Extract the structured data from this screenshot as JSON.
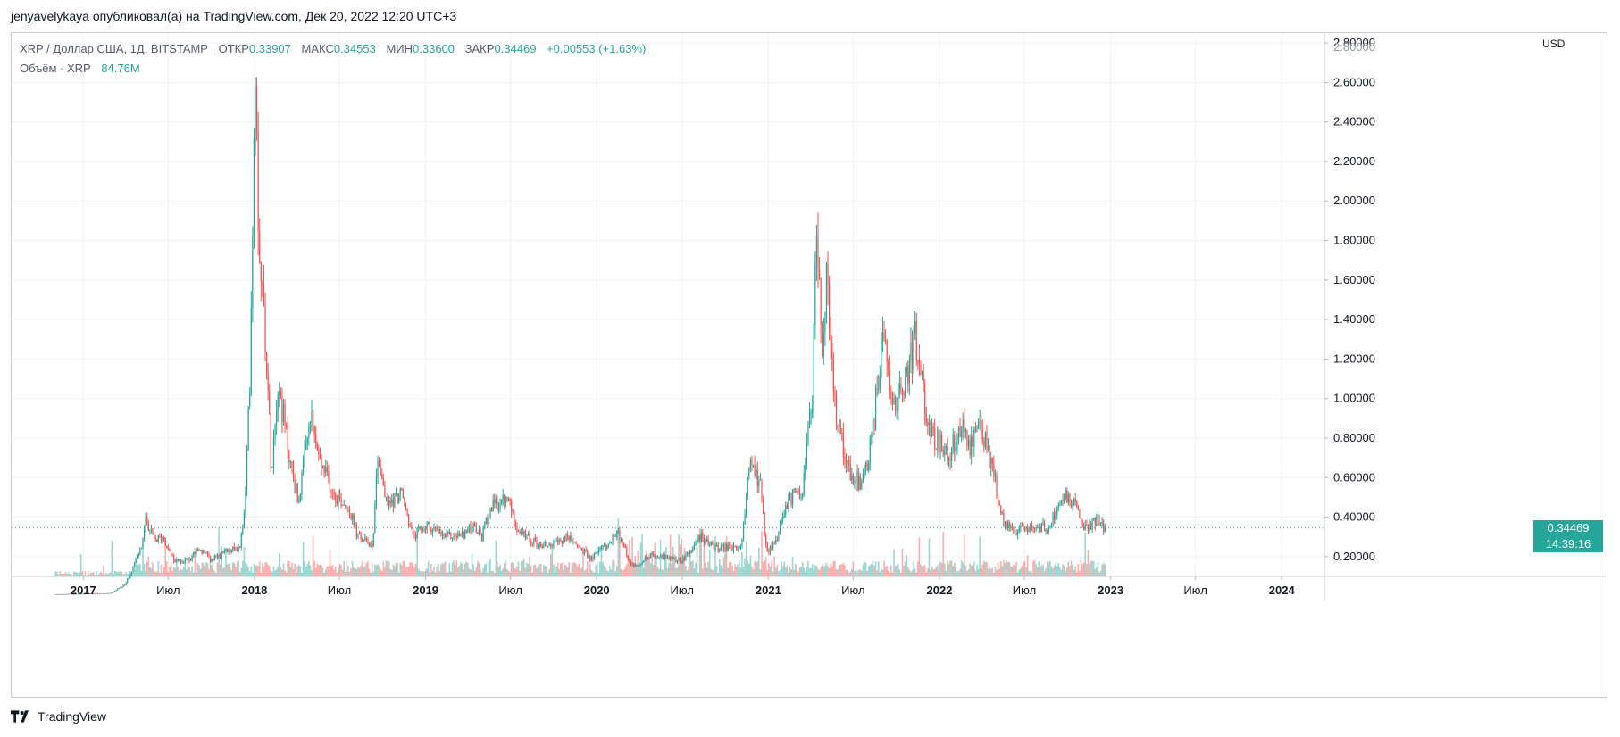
{
  "header": {
    "text": "jenyavelykaya опубликовал(а) на TradingView.com, Дек 20, 2022 12:20 UTC+3"
  },
  "legend": {
    "symbol": "XRP / Доллар США, 1Д, BITSTAMP",
    "open_label": "ОТКР",
    "open": "0.33907",
    "high_label": "МАКС",
    "high": "0.34553",
    "low_label": "МИН",
    "low": "0.33600",
    "close_label": "ЗАКР",
    "close": "0.34469",
    "change": "+0.00553 (+1.63%)",
    "volume_label": "Объём · XRP",
    "volume": "84.76M"
  },
  "axis": {
    "currency": "USD"
  },
  "last_price": {
    "price": "0.34469",
    "countdown": "14:39:16"
  },
  "footer": {
    "brand": "TradingView"
  },
  "colors": {
    "up": "#26a69a",
    "down": "#ef5350",
    "grid": "#f0f3fa",
    "axis": "#131722"
  },
  "chart_data": {
    "type": "candlestick",
    "y_ticks": [
      "0.20000",
      "0.40000",
      "0.60000",
      "0.80000",
      "1.00000",
      "1.20000",
      "1.40000",
      "1.60000",
      "1.80000",
      "2.00000",
      "2.20000",
      "2.40000",
      "2.60000",
      "2.80000"
    ],
    "y_tick_values": [
      0.2,
      0.4,
      0.6,
      0.8,
      1.0,
      1.2,
      1.4,
      1.6,
      1.8,
      2.0,
      2.2,
      2.4,
      2.6,
      2.8
    ],
    "ylim": [
      0.1,
      2.85
    ],
    "x_ticks": [
      {
        "label": "2017",
        "date": "2017-01-01"
      },
      {
        "label": "Июл",
        "date": "2017-07-01"
      },
      {
        "label": "2018",
        "date": "2018-01-01"
      },
      {
        "label": "Июл",
        "date": "2018-07-01"
      },
      {
        "label": "2019",
        "date": "2019-01-01"
      },
      {
        "label": "Июл",
        "date": "2019-07-01"
      },
      {
        "label": "2020",
        "date": "2020-01-01"
      },
      {
        "label": "Июл",
        "date": "2020-07-01"
      },
      {
        "label": "2021",
        "date": "2021-01-01"
      },
      {
        "label": "Июл",
        "date": "2021-07-01"
      },
      {
        "label": "2022",
        "date": "2022-01-01"
      },
      {
        "label": "Июл",
        "date": "2022-07-01"
      },
      {
        "label": "2023",
        "date": "2023-01-01"
      },
      {
        "label": "Июл",
        "date": "2023-07-01"
      },
      {
        "label": "2024",
        "date": "2024-01-01"
      }
    ],
    "xlim": [
      "2016-08-01",
      "2024-04-01"
    ],
    "last_price": 0.34469,
    "series": [
      {
        "date": "2016-11-01",
        "price": 0.009
      },
      {
        "date": "2017-03-01",
        "price": 0.015
      },
      {
        "date": "2017-04-01",
        "price": 0.06
      },
      {
        "date": "2017-05-05",
        "price": 0.25
      },
      {
        "date": "2017-05-15",
        "price": 0.39
      },
      {
        "date": "2017-06-01",
        "price": 0.28
      },
      {
        "date": "2017-06-20",
        "price": 0.3
      },
      {
        "date": "2017-07-15",
        "price": 0.17
      },
      {
        "date": "2017-08-15",
        "price": 0.19
      },
      {
        "date": "2017-09-05",
        "price": 0.24
      },
      {
        "date": "2017-10-01",
        "price": 0.18
      },
      {
        "date": "2017-11-01",
        "price": 0.22
      },
      {
        "date": "2017-12-01",
        "price": 0.25
      },
      {
        "date": "2017-12-12",
        "price": 0.45
      },
      {
        "date": "2017-12-22",
        "price": 1.1
      },
      {
        "date": "2017-12-30",
        "price": 2.2
      },
      {
        "date": "2018-01-04",
        "price": 2.85
      },
      {
        "date": "2018-01-08",
        "price": 2.0
      },
      {
        "date": "2018-01-16",
        "price": 1.6
      },
      {
        "date": "2018-01-25",
        "price": 1.3
      },
      {
        "date": "2018-02-06",
        "price": 0.65
      },
      {
        "date": "2018-02-20",
        "price": 1.1
      },
      {
        "date": "2018-03-01",
        "price": 0.95
      },
      {
        "date": "2018-03-20",
        "price": 0.65
      },
      {
        "date": "2018-04-05",
        "price": 0.48
      },
      {
        "date": "2018-05-01",
        "price": 0.9
      },
      {
        "date": "2018-05-20",
        "price": 0.68
      },
      {
        "date": "2018-06-20",
        "price": 0.52
      },
      {
        "date": "2018-07-20",
        "price": 0.45
      },
      {
        "date": "2018-08-10",
        "price": 0.3
      },
      {
        "date": "2018-09-10",
        "price": 0.26
      },
      {
        "date": "2018-09-21",
        "price": 0.72
      },
      {
        "date": "2018-10-10",
        "price": 0.46
      },
      {
        "date": "2018-11-10",
        "price": 0.52
      },
      {
        "date": "2018-12-05",
        "price": 0.3
      },
      {
        "date": "2019-01-05",
        "price": 0.36
      },
      {
        "date": "2019-02-10",
        "price": 0.3
      },
      {
        "date": "2019-03-20",
        "price": 0.31
      },
      {
        "date": "2019-04-10",
        "price": 0.35
      },
      {
        "date": "2019-05-01",
        "price": 0.3
      },
      {
        "date": "2019-05-20",
        "price": 0.45
      },
      {
        "date": "2019-06-25",
        "price": 0.49
      },
      {
        "date": "2019-07-20",
        "price": 0.32
      },
      {
        "date": "2019-09-01",
        "price": 0.26
      },
      {
        "date": "2019-10-01",
        "price": 0.26
      },
      {
        "date": "2019-11-01",
        "price": 0.3
      },
      {
        "date": "2019-12-20",
        "price": 0.19
      },
      {
        "date": "2020-02-15",
        "price": 0.32
      },
      {
        "date": "2020-03-15",
        "price": 0.15
      },
      {
        "date": "2020-05-01",
        "price": 0.21
      },
      {
        "date": "2020-07-01",
        "price": 0.18
      },
      {
        "date": "2020-08-10",
        "price": 0.3
      },
      {
        "date": "2020-09-15",
        "price": 0.24
      },
      {
        "date": "2020-11-05",
        "price": 0.25
      },
      {
        "date": "2020-11-24",
        "price": 0.7
      },
      {
        "date": "2020-12-15",
        "price": 0.55
      },
      {
        "date": "2020-12-28",
        "price": 0.22
      },
      {
        "date": "2021-01-20",
        "price": 0.28
      },
      {
        "date": "2021-02-05",
        "price": 0.45
      },
      {
        "date": "2021-02-20",
        "price": 0.5
      },
      {
        "date": "2021-03-15",
        "price": 0.55
      },
      {
        "date": "2021-04-05",
        "price": 1.0
      },
      {
        "date": "2021-04-14",
        "price": 1.96
      },
      {
        "date": "2021-04-25",
        "price": 1.2
      },
      {
        "date": "2021-05-05",
        "price": 1.6
      },
      {
        "date": "2021-05-20",
        "price": 1.0
      },
      {
        "date": "2021-06-20",
        "price": 0.65
      },
      {
        "date": "2021-07-20",
        "price": 0.55
      },
      {
        "date": "2021-08-10",
        "price": 0.8
      },
      {
        "date": "2021-09-05",
        "price": 1.38
      },
      {
        "date": "2021-09-25",
        "price": 0.95
      },
      {
        "date": "2021-10-20",
        "price": 1.1
      },
      {
        "date": "2021-11-10",
        "price": 1.3
      },
      {
        "date": "2021-12-10",
        "price": 0.85
      },
      {
        "date": "2022-01-20",
        "price": 0.7
      },
      {
        "date": "2022-02-15",
        "price": 0.85
      },
      {
        "date": "2022-03-10",
        "price": 0.75
      },
      {
        "date": "2022-03-29",
        "price": 0.88
      },
      {
        "date": "2022-04-25",
        "price": 0.63
      },
      {
        "date": "2022-05-12",
        "price": 0.4
      },
      {
        "date": "2022-06-15",
        "price": 0.32
      },
      {
        "date": "2022-07-20",
        "price": 0.36
      },
      {
        "date": "2022-08-20",
        "price": 0.34
      },
      {
        "date": "2022-09-23",
        "price": 0.52
      },
      {
        "date": "2022-10-20",
        "price": 0.45
      },
      {
        "date": "2022-11-10",
        "price": 0.34
      },
      {
        "date": "2022-12-01",
        "price": 0.39
      },
      {
        "date": "2022-12-20",
        "price": 0.345
      }
    ]
  }
}
